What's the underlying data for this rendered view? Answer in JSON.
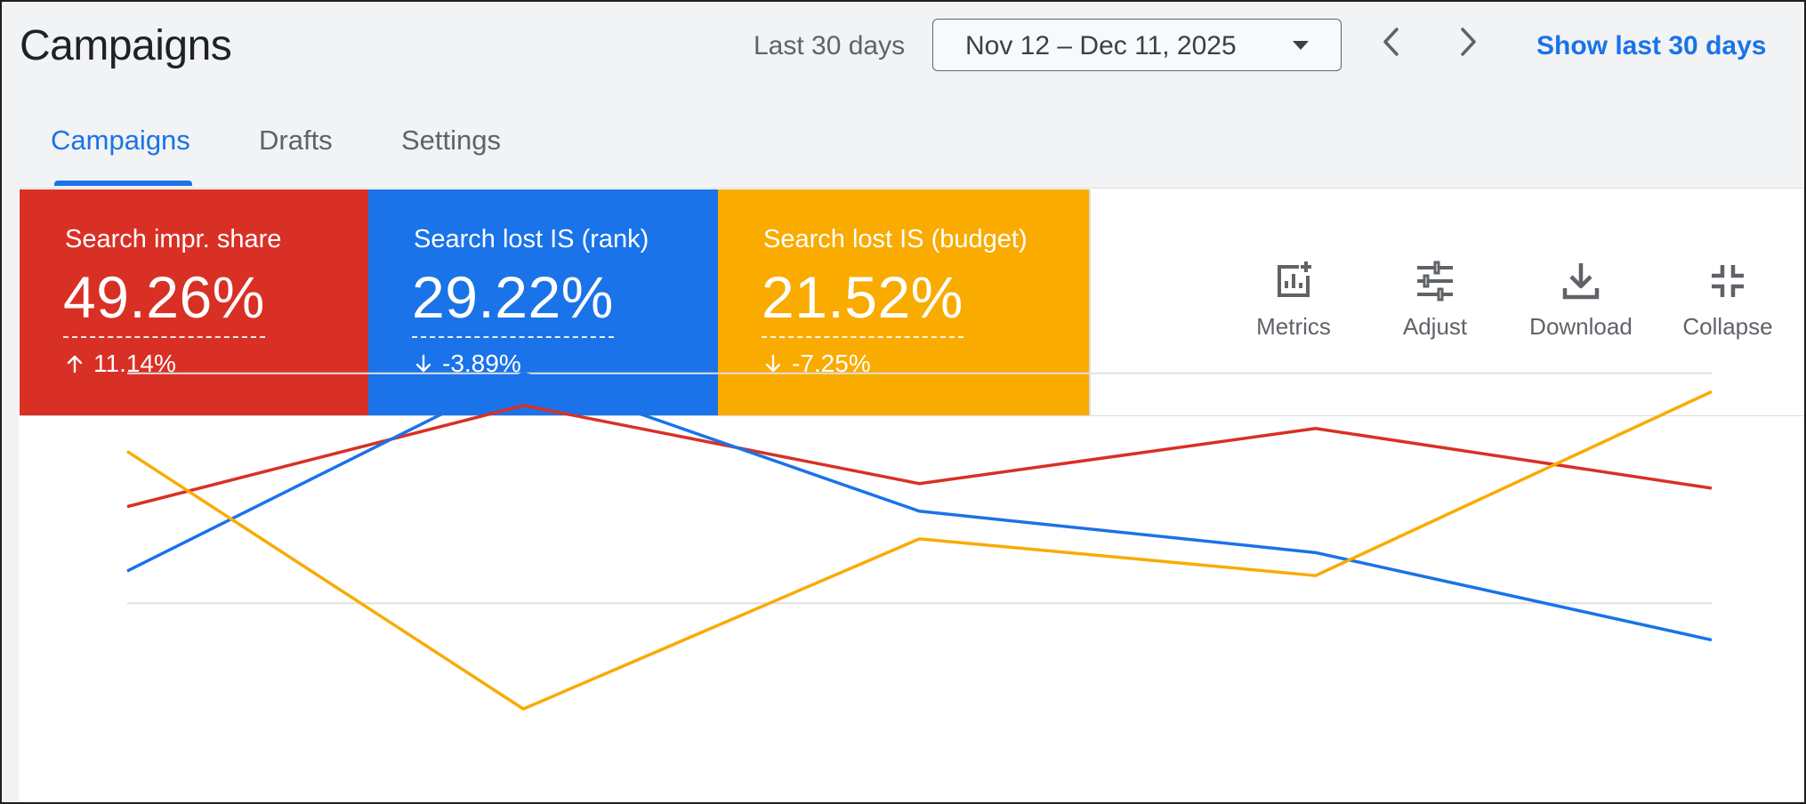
{
  "header": {
    "title": "Campaigns",
    "range_label": "Last 30 days",
    "date_range": "Nov 12 – Dec 11, 2025",
    "show_link": "Show last 30 days"
  },
  "tabs": [
    {
      "label": "Campaigns",
      "active": true
    },
    {
      "label": "Drafts",
      "active": false
    },
    {
      "label": "Settings",
      "active": false
    }
  ],
  "metrics": [
    {
      "title": "Search impr. share",
      "value": "49.26%",
      "change": "11.14%",
      "direction": "up",
      "color": "#d93025"
    },
    {
      "title": "Search lost IS (rank)",
      "value": "29.22%",
      "change": "-3.89%",
      "direction": "down",
      "color": "#1a73e8"
    },
    {
      "title": "Search lost IS (budget)",
      "value": "21.52%",
      "change": "-7.25%",
      "direction": "down",
      "color": "#f9ab00"
    }
  ],
  "toolbar": [
    {
      "label": "Metrics",
      "icon": "add-chart-icon"
    },
    {
      "label": "Adjust",
      "icon": "tune-icon"
    },
    {
      "label": "Download",
      "icon": "download-icon"
    },
    {
      "label": "Collapse",
      "icon": "collapse-icon"
    }
  ],
  "colors": {
    "accent": "#1a73e8",
    "red": "#d93025",
    "blue": "#1a73e8",
    "yellow": "#f9ab00"
  },
  "chart_data": {
    "type": "line",
    "x": [
      1,
      2,
      3,
      4,
      5
    ],
    "grid": true,
    "ylim": [
      0,
      1
    ],
    "gridlines": [
      0.4,
      0.9
    ],
    "series": [
      {
        "color": "#d93025",
        "values": [
          0.61,
          0.83,
          0.66,
          0.78,
          0.65
        ]
      },
      {
        "color": "#1a73e8",
        "values": [
          0.47,
          0.9,
          0.6,
          0.51,
          0.32
        ]
      },
      {
        "color": "#f9ab00",
        "values": [
          0.73,
          0.17,
          0.54,
          0.46,
          0.86
        ]
      }
    ]
  }
}
